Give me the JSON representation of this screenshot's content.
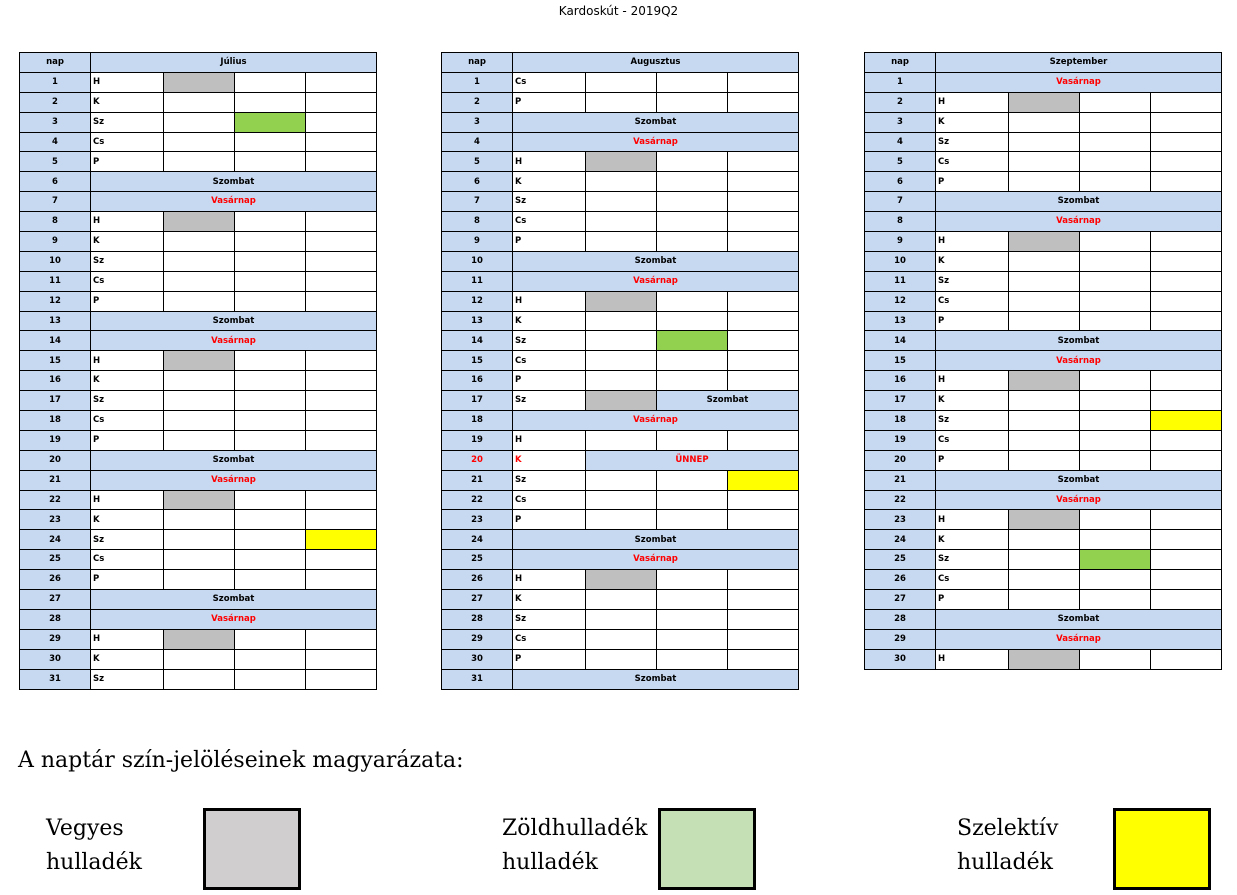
{
  "title": "Kardoskút - 2019Q2",
  "nap_header": "nap",
  "colors": {
    "gray": "#bfbfbf",
    "green": "#92d050",
    "yellow": "#ffff00",
    "header": "#c6d9f1",
    "red": "#ff0000"
  },
  "months": [
    {
      "name": "Július",
      "rows": [
        {
          "n": "1",
          "d": "H",
          "m": [
            1,
            0,
            0
          ]
        },
        {
          "n": "2",
          "d": "K",
          "m": [
            0,
            0,
            0
          ]
        },
        {
          "n": "3",
          "d": "Sz",
          "m": [
            0,
            2,
            0
          ]
        },
        {
          "n": "4",
          "d": "Cs",
          "m": [
            0,
            0,
            0
          ]
        },
        {
          "n": "5",
          "d": "P",
          "m": [
            0,
            0,
            0
          ]
        },
        {
          "n": "6",
          "s": "Szombat"
        },
        {
          "n": "7",
          "s": "Vasárnap",
          "red": true
        },
        {
          "n": "8",
          "d": "H",
          "m": [
            1,
            0,
            0
          ]
        },
        {
          "n": "9",
          "d": "K",
          "m": [
            0,
            0,
            0
          ]
        },
        {
          "n": "10",
          "d": "Sz",
          "m": [
            0,
            0,
            0
          ]
        },
        {
          "n": "11",
          "d": "Cs",
          "m": [
            0,
            0,
            0
          ]
        },
        {
          "n": "12",
          "d": "P",
          "m": [
            0,
            0,
            0
          ]
        },
        {
          "n": "13",
          "s": "Szombat"
        },
        {
          "n": "14",
          "s": "Vasárnap",
          "red": true
        },
        {
          "n": "15",
          "d": "H",
          "m": [
            1,
            0,
            0
          ]
        },
        {
          "n": "16",
          "d": "K",
          "m": [
            0,
            0,
            0
          ]
        },
        {
          "n": "17",
          "d": "Sz",
          "m": [
            0,
            0,
            0
          ]
        },
        {
          "n": "18",
          "d": "Cs",
          "m": [
            0,
            0,
            0
          ]
        },
        {
          "n": "19",
          "d": "P",
          "m": [
            0,
            0,
            0
          ]
        },
        {
          "n": "20",
          "s": "Szombat"
        },
        {
          "n": "21",
          "s": "Vasárnap",
          "red": true
        },
        {
          "n": "22",
          "d": "H",
          "m": [
            1,
            0,
            0
          ]
        },
        {
          "n": "23",
          "d": "K",
          "m": [
            0,
            0,
            0
          ]
        },
        {
          "n": "24",
          "d": "Sz",
          "m": [
            0,
            0,
            3
          ]
        },
        {
          "n": "25",
          "d": "Cs",
          "m": [
            0,
            0,
            0
          ]
        },
        {
          "n": "26",
          "d": "P",
          "m": [
            0,
            0,
            0
          ]
        },
        {
          "n": "27",
          "s": "Szombat"
        },
        {
          "n": "28",
          "s": "Vasárnap",
          "red": true
        },
        {
          "n": "29",
          "d": "H",
          "m": [
            1,
            0,
            0
          ]
        },
        {
          "n": "30",
          "d": "K",
          "m": [
            0,
            0,
            0
          ]
        },
        {
          "n": "31",
          "d": "Sz",
          "m": [
            0,
            0,
            0
          ]
        }
      ]
    },
    {
      "name": "Augusztus",
      "rows": [
        {
          "n": "1",
          "d": "Cs",
          "m": [
            0,
            0,
            0
          ]
        },
        {
          "n": "2",
          "d": "P",
          "m": [
            0,
            0,
            0
          ]
        },
        {
          "n": "3",
          "s": "Szombat"
        },
        {
          "n": "4",
          "s": "Vasárnap",
          "red": true
        },
        {
          "n": "5",
          "d": "H",
          "m": [
            1,
            0,
            0
          ]
        },
        {
          "n": "6",
          "d": "K",
          "m": [
            0,
            0,
            0
          ]
        },
        {
          "n": "7",
          "d": "Sz",
          "m": [
            0,
            0,
            0
          ]
        },
        {
          "n": "8",
          "d": "Cs",
          "m": [
            0,
            0,
            0
          ]
        },
        {
          "n": "9",
          "d": "P",
          "m": [
            0,
            0,
            0
          ]
        },
        {
          "n": "10",
          "s": "Szombat"
        },
        {
          "n": "11",
          "s": "Vasárnap",
          "red": true
        },
        {
          "n": "12",
          "d": "H",
          "m": [
            1,
            0,
            0
          ]
        },
        {
          "n": "13",
          "d": "K",
          "m": [
            0,
            0,
            0
          ]
        },
        {
          "n": "14",
          "d": "Sz",
          "m": [
            0,
            2,
            0
          ]
        },
        {
          "n": "15",
          "d": "Cs",
          "m": [
            0,
            0,
            0
          ]
        },
        {
          "n": "16",
          "d": "P",
          "m": [
            0,
            0,
            0
          ]
        },
        {
          "n": "17",
          "d": "Sz",
          "gray1": true,
          "s2": "Szombat"
        },
        {
          "n": "18",
          "s": "Vasárnap",
          "red": true
        },
        {
          "n": "19",
          "d": "H",
          "m": [
            0,
            0,
            0
          ]
        },
        {
          "n": "20",
          "d": "K",
          "hol": true,
          "s3": "ÜNNEP"
        },
        {
          "n": "21",
          "d": "Sz",
          "m": [
            0,
            0,
            3
          ]
        },
        {
          "n": "22",
          "d": "Cs",
          "m": [
            0,
            0,
            0
          ]
        },
        {
          "n": "23",
          "d": "P",
          "m": [
            0,
            0,
            0
          ]
        },
        {
          "n": "24",
          "s": "Szombat"
        },
        {
          "n": "25",
          "s": "Vasárnap",
          "red": true
        },
        {
          "n": "26",
          "d": "H",
          "m": [
            1,
            0,
            0
          ]
        },
        {
          "n": "27",
          "d": "K",
          "m": [
            0,
            0,
            0
          ]
        },
        {
          "n": "28",
          "d": "Sz",
          "m": [
            0,
            0,
            0
          ]
        },
        {
          "n": "29",
          "d": "Cs",
          "m": [
            0,
            0,
            0
          ]
        },
        {
          "n": "30",
          "d": "P",
          "m": [
            0,
            0,
            0
          ]
        },
        {
          "n": "31",
          "s": "Szombat"
        }
      ]
    },
    {
      "name": "Szeptember",
      "rows": [
        {
          "n": "1",
          "s": "Vasárnap",
          "red": true
        },
        {
          "n": "2",
          "d": "H",
          "m": [
            1,
            0,
            0
          ]
        },
        {
          "n": "3",
          "d": "K",
          "m": [
            0,
            0,
            0
          ]
        },
        {
          "n": "4",
          "d": "Sz",
          "m": [
            0,
            0,
            0
          ]
        },
        {
          "n": "5",
          "d": "Cs",
          "m": [
            0,
            0,
            0
          ]
        },
        {
          "n": "6",
          "d": "P",
          "m": [
            0,
            0,
            0
          ]
        },
        {
          "n": "7",
          "s": "Szombat"
        },
        {
          "n": "8",
          "s": "Vasárnap",
          "red": true
        },
        {
          "n": "9",
          "d": "H",
          "m": [
            1,
            0,
            0
          ]
        },
        {
          "n": "10",
          "d": "K",
          "m": [
            0,
            0,
            0
          ]
        },
        {
          "n": "11",
          "d": "Sz",
          "m": [
            0,
            0,
            0
          ]
        },
        {
          "n": "12",
          "d": "Cs",
          "m": [
            0,
            0,
            0
          ]
        },
        {
          "n": "13",
          "d": "P",
          "m": [
            0,
            0,
            0
          ]
        },
        {
          "n": "14",
          "s": "Szombat"
        },
        {
          "n": "15",
          "s": "Vasárnap",
          "red": true
        },
        {
          "n": "16",
          "d": "H",
          "m": [
            1,
            0,
            0
          ]
        },
        {
          "n": "17",
          "d": "K",
          "m": [
            0,
            0,
            0
          ]
        },
        {
          "n": "18",
          "d": "Sz",
          "m": [
            0,
            0,
            3
          ]
        },
        {
          "n": "19",
          "d": "Cs",
          "m": [
            0,
            0,
            0
          ]
        },
        {
          "n": "20",
          "d": "P",
          "m": [
            0,
            0,
            0
          ]
        },
        {
          "n": "21",
          "s": "Szombat"
        },
        {
          "n": "22",
          "s": "Vasárnap",
          "red": true
        },
        {
          "n": "23",
          "d": "H",
          "m": [
            1,
            0,
            0
          ]
        },
        {
          "n": "24",
          "d": "K",
          "m": [
            0,
            0,
            0
          ]
        },
        {
          "n": "25",
          "d": "Sz",
          "m": [
            0,
            2,
            0
          ]
        },
        {
          "n": "26",
          "d": "Cs",
          "m": [
            0,
            0,
            0
          ]
        },
        {
          "n": "27",
          "d": "P",
          "m": [
            0,
            0,
            0
          ]
        },
        {
          "n": "28",
          "s": "Szombat"
        },
        {
          "n": "29",
          "s": "Vasárnap",
          "red": true
        },
        {
          "n": "30",
          "d": "H",
          "m": [
            1,
            0,
            0
          ]
        }
      ]
    }
  ],
  "legend": {
    "title": "A naptár szín-jelöléseinek magyarázata:",
    "items": [
      {
        "line1": "Vegyes",
        "line2": "hulladék",
        "color": "#d0cece"
      },
      {
        "line1": "Zöldhulladék",
        "line2": "hulladék",
        "color": "#c5e0b4"
      },
      {
        "line1": "Szelektív",
        "line2": "hulladék",
        "color": "#ffff00"
      }
    ]
  }
}
